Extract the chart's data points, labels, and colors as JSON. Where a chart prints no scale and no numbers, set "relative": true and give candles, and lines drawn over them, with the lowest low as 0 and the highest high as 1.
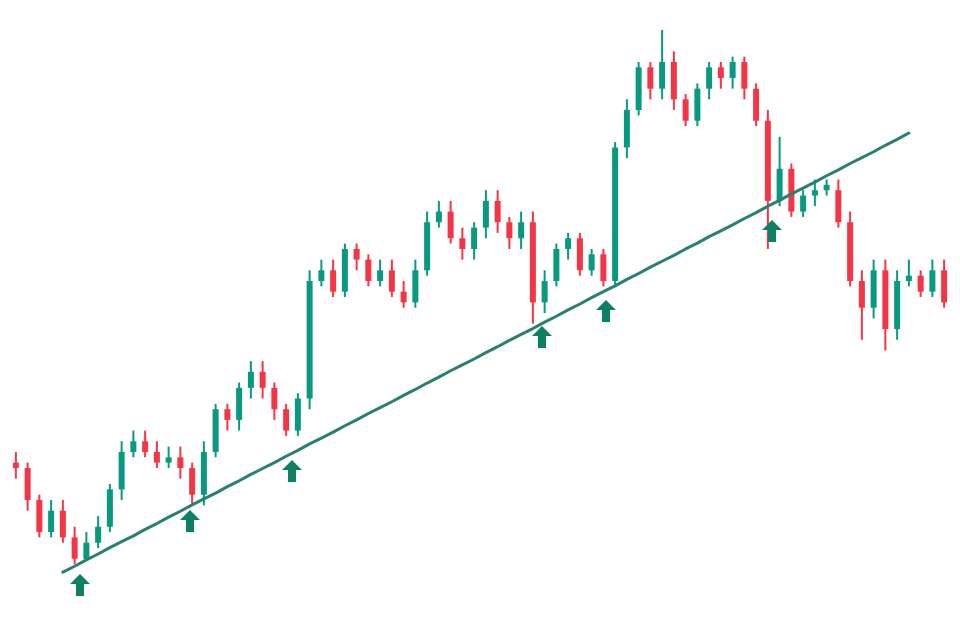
{
  "chart_data": {
    "type": "candlestick",
    "relative": true,
    "categories": [
      null,
      null,
      null,
      null,
      null,
      null,
      null,
      null,
      null,
      null,
      null,
      null,
      null,
      null,
      null,
      null,
      null,
      null,
      null,
      null,
      null,
      null,
      null,
      null,
      null,
      null,
      null,
      null,
      null,
      null,
      null,
      null,
      null,
      null,
      null,
      null,
      null,
      null,
      null,
      null,
      null,
      null,
      null,
      null,
      null,
      null,
      null,
      null,
      null,
      null,
      null,
      null,
      null,
      null,
      null,
      null,
      null,
      null,
      null,
      null,
      null,
      null,
      null,
      null,
      null,
      null,
      null,
      null,
      null,
      null,
      null,
      null,
      null,
      null,
      null,
      null,
      null,
      null,
      null,
      null
    ],
    "series": [
      {
        "ohlc": [
          [
            0.19,
            0.21,
            0.16,
            0.18
          ],
          [
            0.18,
            0.19,
            0.1,
            0.12
          ],
          [
            0.12,
            0.13,
            0.05,
            0.06
          ],
          [
            0.06,
            0.12,
            0.05,
            0.1
          ],
          [
            0.1,
            0.12,
            0.04,
            0.05
          ],
          [
            0.05,
            0.07,
            0,
            0.01
          ],
          [
            0.01,
            0.06,
            0.01,
            0.04
          ],
          [
            0.04,
            0.09,
            0.03,
            0.07
          ],
          [
            0.07,
            0.15,
            0.06,
            0.14
          ],
          [
            0.14,
            0.23,
            0.12,
            0.21
          ],
          [
            0.21,
            0.25,
            0.2,
            0.23
          ],
          [
            0.23,
            0.25,
            0.2,
            0.21
          ],
          [
            0.21,
            0.23,
            0.18,
            0.19
          ],
          [
            0.19,
            0.22,
            0.18,
            0.2
          ],
          [
            0.2,
            0.22,
            0.16,
            0.18
          ],
          [
            0.18,
            0.19,
            0.11,
            0.13
          ],
          [
            0.13,
            0.23,
            0.11,
            0.21
          ],
          [
            0.21,
            0.3,
            0.2,
            0.29
          ],
          [
            0.29,
            0.3,
            0.25,
            0.27
          ],
          [
            0.27,
            0.34,
            0.25,
            0.33
          ],
          [
            0.33,
            0.38,
            0.31,
            0.36
          ],
          [
            0.36,
            0.38,
            0.31,
            0.33
          ],
          [
            0.33,
            0.34,
            0.27,
            0.29
          ],
          [
            0.29,
            0.3,
            0.24,
            0.25
          ],
          [
            0.25,
            0.32,
            0.24,
            0.31
          ],
          [
            0.31,
            0.55,
            0.29,
            0.53
          ],
          [
            0.53,
            0.57,
            0.52,
            0.55
          ],
          [
            0.55,
            0.57,
            0.5,
            0.51
          ],
          [
            0.51,
            0.6,
            0.5,
            0.59
          ],
          [
            0.59,
            0.6,
            0.55,
            0.57
          ],
          [
            0.57,
            0.58,
            0.52,
            0.53
          ],
          [
            0.53,
            0.57,
            0.52,
            0.55
          ],
          [
            0.55,
            0.57,
            0.5,
            0.51
          ],
          [
            0.51,
            0.53,
            0.48,
            0.49
          ],
          [
            0.49,
            0.57,
            0.48,
            0.55
          ],
          [
            0.55,
            0.66,
            0.54,
            0.64
          ],
          [
            0.64,
            0.68,
            0.63,
            0.66
          ],
          [
            0.66,
            0.68,
            0.6,
            0.61
          ],
          [
            0.61,
            0.63,
            0.57,
            0.59
          ],
          [
            0.59,
            0.64,
            0.57,
            0.63
          ],
          [
            0.63,
            0.7,
            0.61,
            0.68
          ],
          [
            0.68,
            0.7,
            0.62,
            0.64
          ],
          [
            0.64,
            0.65,
            0.59,
            0.61
          ],
          [
            0.61,
            0.66,
            0.59,
            0.64
          ],
          [
            0.64,
            0.66,
            0.45,
            0.49
          ],
          [
            0.49,
            0.55,
            0.47,
            0.53
          ],
          [
            0.53,
            0.6,
            0.52,
            0.59
          ],
          [
            0.59,
            0.62,
            0.57,
            0.61
          ],
          [
            0.61,
            0.62,
            0.54,
            0.55
          ],
          [
            0.55,
            0.59,
            0.54,
            0.58
          ],
          [
            0.58,
            0.59,
            0.52,
            0.53
          ],
          [
            0.53,
            0.79,
            0.52,
            0.78
          ],
          [
            0.78,
            0.87,
            0.76,
            0.85
          ],
          [
            0.85,
            0.94,
            0.84,
            0.93
          ],
          [
            0.93,
            0.94,
            0.87,
            0.89
          ],
          [
            0.89,
            1,
            0.87,
            0.94
          ],
          [
            0.94,
            0.96,
            0.85,
            0.87
          ],
          [
            0.87,
            0.88,
            0.82,
            0.83
          ],
          [
            0.83,
            0.9,
            0.82,
            0.89
          ],
          [
            0.89,
            0.94,
            0.87,
            0.93
          ],
          [
            0.93,
            0.94,
            0.89,
            0.91
          ],
          [
            0.91,
            0.95,
            0.89,
            0.94
          ],
          [
            0.94,
            0.95,
            0.87,
            0.89
          ],
          [
            0.89,
            0.9,
            0.82,
            0.83
          ],
          [
            0.83,
            0.85,
            0.59,
            0.68
          ],
          [
            0.68,
            0.8,
            0.67,
            0.74
          ],
          [
            0.74,
            0.75,
            0.65,
            0.66
          ],
          [
            0.66,
            0.7,
            0.65,
            0.69
          ],
          [
            0.69,
            0.72,
            0.67,
            0.7
          ],
          [
            0.7,
            0.72,
            0.69,
            0.71
          ],
          [
            0.7,
            0.72,
            0.63,
            0.64
          ],
          [
            0.64,
            0.66,
            0.52,
            0.53
          ],
          [
            0.53,
            0.55,
            0.42,
            0.48
          ],
          [
            0.48,
            0.57,
            0.46,
            0.55
          ],
          [
            0.55,
            0.57,
            0.4,
            0.44
          ],
          [
            0.44,
            0.55,
            0.42,
            0.53
          ],
          [
            0.53,
            0.57,
            0.52,
            0.54
          ],
          [
            0.54,
            0.55,
            0.5,
            0.51
          ],
          [
            0.51,
            0.57,
            0.5,
            0.55
          ],
          [
            0.55,
            0.57,
            0.48,
            0.49
          ]
        ],
        "colors": [
          "#f23645",
          "#f23645",
          "#f23645",
          "#089981",
          "#f23645",
          "#f23645",
          "#089981",
          "#089981",
          "#089981",
          "#089981",
          "#089981",
          "#f23645",
          "#f23645",
          "#089981",
          "#f23645",
          "#f23645",
          "#089981",
          "#089981",
          "#f23645",
          "#089981",
          "#089981",
          "#f23645",
          "#f23645",
          "#f23645",
          "#089981",
          "#089981",
          "#089981",
          "#f23645",
          "#089981",
          "#f23645",
          "#f23645",
          "#089981",
          "#f23645",
          "#f23645",
          "#089981",
          "#089981",
          "#089981",
          "#f23645",
          "#f23645",
          "#089981",
          "#089981",
          "#f23645",
          "#f23645",
          "#089981",
          "#f23645",
          "#089981",
          "#089981",
          "#089981",
          "#f23645",
          "#089981",
          "#f23645",
          "#089981",
          "#089981",
          "#089981",
          "#f23645",
          "#089981",
          "#f23645",
          "#f23645",
          "#089981",
          "#089981",
          "#f23645",
          "#089981",
          "#f23645",
          "#f23645",
          "#f23645",
          "#089981",
          "#f23645",
          "#089981",
          "#089981",
          "#089981",
          "#f23645",
          "#f23645",
          "#f23645",
          "#089981",
          "#f23645",
          "#089981",
          "#089981",
          "#f23645",
          "#089981",
          "#f23645"
        ]
      },
      {
        "type": "line",
        "color": "#2a7f72",
        "values": [
          null,
          null,
          null,
          null,
          -0.015,
          -0.004,
          0.008,
          0.019,
          0.031,
          0.042,
          0.053,
          0.065,
          0.076,
          0.088,
          0.099,
          0.111,
          0.122,
          0.133,
          0.145,
          0.156,
          0.168,
          0.179,
          0.19,
          0.202,
          0.213,
          0.225,
          0.236,
          0.247,
          0.259,
          0.27,
          0.282,
          0.293,
          0.304,
          0.316,
          0.327,
          0.339,
          0.35,
          0.362,
          0.373,
          0.384,
          0.396,
          0.407,
          0.419,
          0.43,
          0.441,
          0.453,
          0.464,
          0.476,
          0.487,
          0.499,
          0.51,
          0.521,
          0.533,
          0.544,
          0.556,
          0.567,
          0.578,
          0.59,
          0.601,
          0.613,
          0.624,
          0.635,
          0.647,
          0.658,
          0.67,
          0.681,
          0.693,
          0.704,
          0.715,
          0.727,
          0.738,
          0.75,
          0.761,
          0.772,
          0.784,
          0.795,
          0.807,
          null,
          null,
          null
        ]
      }
    ]
  }
}
